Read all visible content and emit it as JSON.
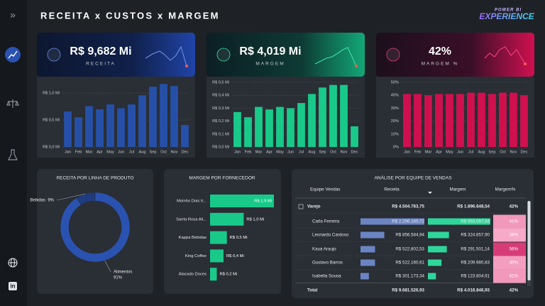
{
  "header": {
    "title": "RECEITA x CUSTOS x MARGEM",
    "logo_top": "POWER BI",
    "logo_bottom": "EXPERIENCE"
  },
  "kpis": [
    {
      "value": "R$ 9,682 Mi",
      "label": "RECEITA"
    },
    {
      "value": "R$ 4,019 Mi",
      "label": "MARGEM"
    },
    {
      "value": "42%",
      "label": "MARGEM %"
    }
  ],
  "chart_data": [
    {
      "type": "bar",
      "categories": [
        "Jan",
        "Feb",
        "Mar",
        "Apr",
        "May",
        "Jun",
        "Jul",
        "Aug",
        "Sep",
        "Oct",
        "Nov",
        "Dec"
      ],
      "values": [
        0.66,
        0.55,
        0.76,
        0.7,
        0.79,
        0.72,
        0.79,
        0.96,
        1.12,
        1.17,
        1.13,
        0.41
      ],
      "color": "#2650a8",
      "ylim": [
        0,
        1.2
      ],
      "yticks": [
        {
          "value": 0,
          "label": "R$ 0,0 Mi"
        },
        {
          "value": 0.5,
          "label": "R$ 0,5 Mi"
        },
        {
          "value": 1.0,
          "label": "R$ 1,0 Mi"
        }
      ],
      "grid": true
    },
    {
      "type": "bar",
      "categories": [
        "Jan",
        "Feb",
        "Mar",
        "Apr",
        "May",
        "Jun",
        "Jul",
        "Aug",
        "Sep",
        "Oct",
        "Nov",
        "Dec"
      ],
      "values": [
        0.27,
        0.23,
        0.31,
        0.29,
        0.31,
        0.3,
        0.34,
        0.41,
        0.46,
        0.48,
        0.48,
        0.16
      ],
      "color": "#19c98a",
      "ylim": [
        0,
        0.5
      ],
      "yticks": [
        {
          "value": 0,
          "label": "R$ 0,0 Mi"
        },
        {
          "value": 0.1,
          "label": "R$ 0,1 Mi"
        },
        {
          "value": 0.2,
          "label": "R$ 0,2 Mi"
        },
        {
          "value": 0.3,
          "label": "R$ 0,3 Mi"
        },
        {
          "value": 0.4,
          "label": "R$ 0,4 Mi"
        },
        {
          "value": 0.5,
          "label": "R$ 0,5 Mi"
        }
      ],
      "grid": true
    },
    {
      "type": "bar",
      "categories": [
        "Jan",
        "Feb",
        "Mar",
        "Apr",
        "May",
        "Jun",
        "Jul",
        "Aug",
        "Sep",
        "Oct",
        "Nov",
        "Dec"
      ],
      "values": [
        41,
        41,
        40,
        41,
        41,
        41,
        42,
        42,
        41,
        42,
        42,
        40
      ],
      "color": "#d0104e",
      "ylim": [
        0,
        50
      ],
      "yticks": [
        {
          "value": 0,
          "label": "0%"
        },
        {
          "value": 10,
          "label": "10%"
        },
        {
          "value": 20,
          "label": "20%"
        },
        {
          "value": 30,
          "label": "30%"
        },
        {
          "value": 40,
          "label": "40%"
        },
        {
          "value": 50,
          "label": "50%"
        }
      ],
      "grid": true
    },
    {
      "type": "pie",
      "donut": true,
      "title": "RECEITA POR LINHA DE PRODUTO",
      "categories": [
        "Bebidas",
        "Alimentos"
      ],
      "values": [
        9,
        91
      ],
      "value_labels": [
        "9%",
        "91%"
      ],
      "colors": [
        "#1f3c80",
        "#2a52b0"
      ]
    },
    {
      "type": "bar",
      "orientation": "horizontal",
      "title": "MARGEM POR FORNECEDOR",
      "categories": [
        "Moinho Dois Ir...",
        "Santa Rosa Ali...",
        "Kappa Bebidas",
        "King Coffee",
        "Atacado Doces"
      ],
      "values": [
        1.9,
        1.0,
        0.5,
        0.4,
        0.2
      ],
      "value_labels": [
        "R$ 1,9 Mi",
        "R$ 1,0 Mi",
        "R$ 0,5 Mi",
        "R$ 0,4 Mi",
        "R$ 0,2 Mi"
      ],
      "color": "#19c98a"
    }
  ],
  "table": {
    "title": "ANÁLISE POR EQUIPE DE VENDAS",
    "columns": [
      "Equipe Vendas",
      "Receita",
      "Margem",
      "Margem%"
    ],
    "rows": [
      [
        "Varejo",
        "R$ 4.504.783,75",
        "R$ 1.896.648,54",
        "42%"
      ],
      [
        "Carla Ferreira",
        "R$ 2.296.245,72",
        "R$ 963.087,84",
        "41%"
      ],
      [
        "Leonardo Cardoso",
        "R$ 856.584,94",
        "R$ 324.857,90",
        "38%"
      ],
      [
        "Kaua Araujo",
        "R$ 522.802,53",
        "R$ 291.501,14",
        "56%"
      ],
      [
        "Gustavo Barros",
        "R$ 522.160,61",
        "R$ 209.980,83",
        "40%"
      ],
      [
        "Isabella Sousa",
        "R$ 301.173,34",
        "R$ 123.804,91",
        "41%"
      ],
      [
        "Total",
        "R$ 9.681.526,93",
        "R$ 4.018.846,93",
        "42%"
      ]
    ]
  }
}
